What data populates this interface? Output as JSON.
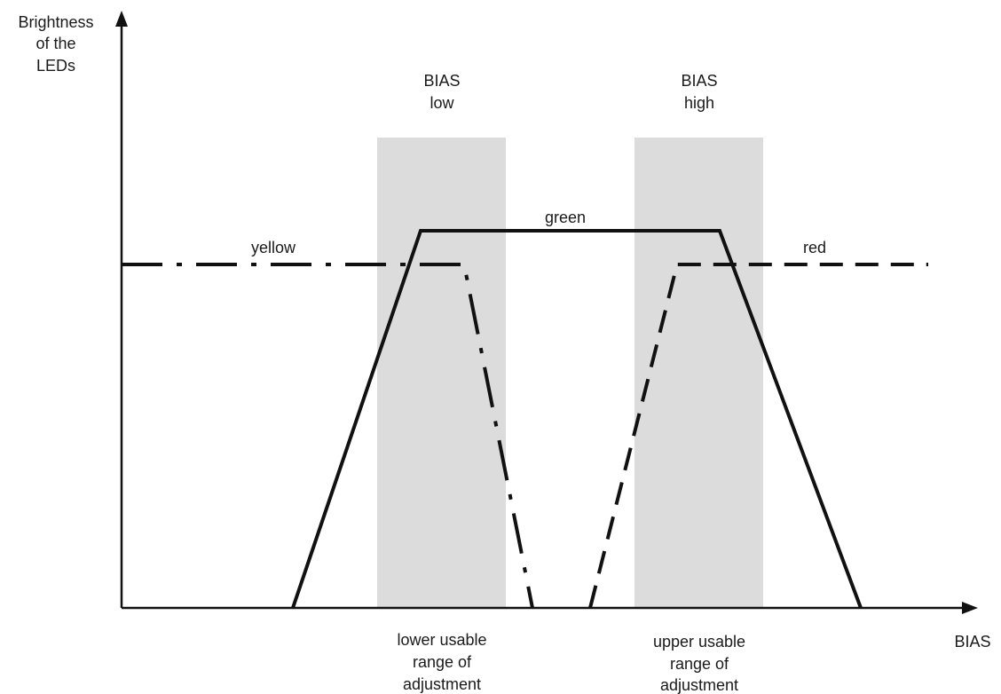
{
  "y_axis": {
    "label_lines": [
      "Brightness",
      "of the",
      "LEDs"
    ]
  },
  "x_axis": {
    "label": "BIAS"
  },
  "bands": [
    {
      "title_lines": [
        "BIAS",
        "low"
      ],
      "caption_lines": [
        "lower usable",
        "range of",
        "adjustment"
      ]
    },
    {
      "title_lines": [
        "BIAS",
        "high"
      ],
      "caption_lines": [
        "upper usable",
        "range of",
        "adjustment"
      ]
    }
  ],
  "curves": [
    {
      "name": "green",
      "style": "solid",
      "color": "#111111"
    },
    {
      "name": "yellow",
      "style": "dash-dot-dot",
      "color": "#111111"
    },
    {
      "name": "red",
      "style": "dashed",
      "color": "#111111"
    }
  ],
  "colors": {
    "band_fill": "#dcdcdc",
    "line": "#111111",
    "background": "#ffffff"
  }
}
